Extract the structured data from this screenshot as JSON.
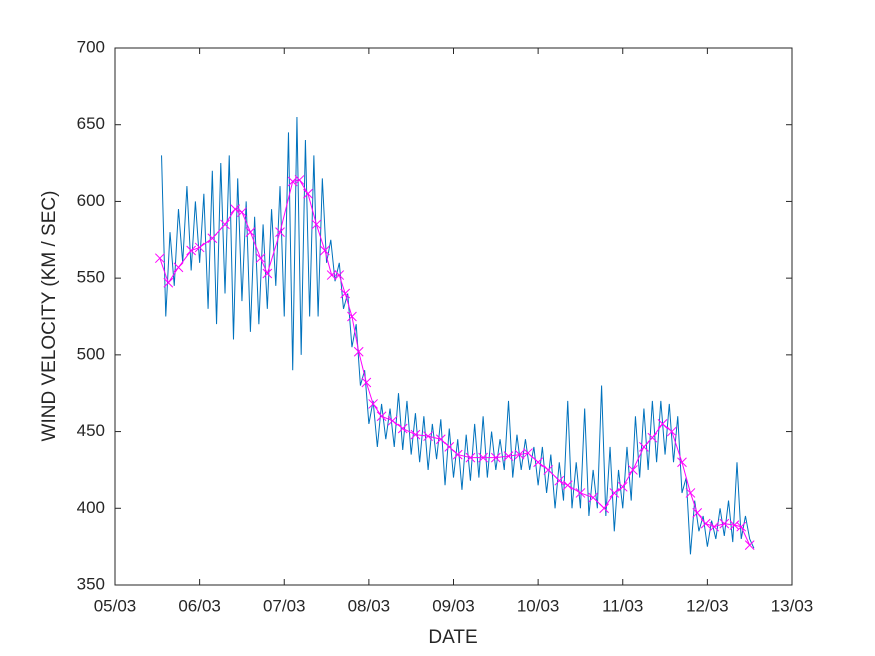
{
  "chart_data": {
    "type": "line",
    "xlabel": "DATE",
    "ylabel": "WIND  VELOCITY (KM / SEC)",
    "xlim": [
      5,
      13
    ],
    "xticks": [
      {
        "value": 5,
        "label": "05/03"
      },
      {
        "value": 6,
        "label": "06/03"
      },
      {
        "value": 7,
        "label": "07/03"
      },
      {
        "value": 8,
        "label": "08/03"
      },
      {
        "value": 9,
        "label": "09/03"
      },
      {
        "value": 10,
        "label": "10/03"
      },
      {
        "value": 11,
        "label": "11/03"
      },
      {
        "value": 12,
        "label": "12/03"
      },
      {
        "value": 13,
        "label": "13/03"
      }
    ],
    "ylim": [
      350,
      700
    ],
    "yticks": [
      350,
      400,
      450,
      500,
      550,
      600,
      650,
      700
    ],
    "series": [
      {
        "color": "#0072bd",
        "marker": "none",
        "x": [
          5.55,
          5.6,
          5.65,
          5.7,
          5.75,
          5.8,
          5.85,
          5.9,
          5.95,
          6,
          6.05,
          6.1,
          6.15,
          6.2,
          6.25,
          6.3,
          6.35,
          6.4,
          6.45,
          6.5,
          6.55,
          6.6,
          6.65,
          6.7,
          6.75,
          6.8,
          6.85,
          6.9,
          6.95,
          7,
          7.05,
          7.1,
          7.15,
          7.2,
          7.25,
          7.3,
          7.35,
          7.4,
          7.45,
          7.5,
          7.55,
          7.6,
          7.65,
          7.7,
          7.75,
          7.8,
          7.85,
          7.9,
          7.95,
          8,
          8.05,
          8.1,
          8.15,
          8.2,
          8.25,
          8.3,
          8.35,
          8.4,
          8.45,
          8.5,
          8.55,
          8.6,
          8.65,
          8.7,
          8.75,
          8.8,
          8.85,
          8.9,
          8.95,
          9,
          9.05,
          9.1,
          9.15,
          9.2,
          9.25,
          9.3,
          9.35,
          9.4,
          9.45,
          9.5,
          9.55,
          9.6,
          9.65,
          9.7,
          9.75,
          9.8,
          9.85,
          9.9,
          9.95,
          10,
          10.05,
          10.1,
          10.15,
          10.2,
          10.25,
          10.3,
          10.35,
          10.4,
          10.45,
          10.5,
          10.55,
          10.6,
          10.65,
          10.7,
          10.75,
          10.8,
          10.85,
          10.9,
          10.95,
          11,
          11.05,
          11.1,
          11.15,
          11.2,
          11.25,
          11.3,
          11.35,
          11.4,
          11.45,
          11.5,
          11.55,
          11.6,
          11.65,
          11.7,
          11.75,
          11.8,
          11.85,
          11.9,
          11.95,
          12,
          12.05,
          12.1,
          12.15,
          12.2,
          12.25,
          12.3,
          12.35,
          12.4,
          12.45,
          12.5,
          12.55
        ],
        "values": [
          630,
          525,
          580,
          545,
          595,
          560,
          610,
          555,
          600,
          560,
          605,
          530,
          620,
          520,
          625,
          540,
          630,
          510,
          615,
          535,
          600,
          515,
          590,
          520,
          585,
          530,
          595,
          545,
          610,
          525,
          645,
          490,
          655,
          500,
          640,
          525,
          630,
          525,
          615,
          560,
          575,
          548,
          560,
          530,
          540,
          505,
          520,
          480,
          490,
          455,
          470,
          440,
          468,
          445,
          465,
          440,
          475,
          438,
          470,
          435,
          462,
          430,
          460,
          425,
          455,
          432,
          458,
          415,
          452,
          420,
          445,
          412,
          448,
          418,
          455,
          420,
          460,
          420,
          450,
          425,
          445,
          425,
          470,
          420,
          448,
          425,
          445,
          425,
          440,
          415,
          440,
          410,
          435,
          400,
          430,
          405,
          470,
          400,
          430,
          400,
          465,
          395,
          425,
          400,
          480,
          395,
          440,
          385,
          425,
          400,
          440,
          405,
          460,
          420,
          465,
          425,
          470,
          430,
          470,
          435,
          468,
          430,
          460,
          410,
          420,
          370,
          405,
          385,
          395,
          375,
          392,
          380,
          400,
          382,
          405,
          378,
          430,
          380,
          395,
          380,
          374
        ]
      },
      {
        "color": "#ff00ff",
        "marker": "x",
        "x": [
          5.53,
          5.63,
          5.75,
          5.9,
          6,
          6.15,
          6.3,
          6.42,
          6.5,
          6.6,
          6.72,
          6.8,
          6.95,
          7.1,
          7.18,
          7.28,
          7.38,
          7.48,
          7.56,
          7.65,
          7.72,
          7.8,
          7.88,
          7.97,
          8.05,
          8.15,
          8.28,
          8.4,
          8.55,
          8.7,
          8.85,
          8.95,
          9.05,
          9.2,
          9.35,
          9.5,
          9.65,
          9.78,
          9.88,
          10,
          10.12,
          10.25,
          10.35,
          10.5,
          10.65,
          10.78,
          10.9,
          11,
          11.12,
          11.25,
          11.35,
          11.47,
          11.58,
          11.7,
          11.8,
          11.88,
          11.98,
          12.08,
          12.2,
          12.32,
          12.4,
          12.5
        ],
        "values": [
          563,
          547,
          557,
          568,
          570,
          576,
          585,
          595,
          593,
          580,
          563,
          553,
          580,
          613,
          614,
          605,
          585,
          568,
          552,
          552,
          540,
          525,
          502,
          482,
          468,
          460,
          457,
          452,
          448,
          447,
          445,
          440,
          435,
          433,
          433,
          433,
          434,
          435,
          436,
          430,
          425,
          418,
          415,
          410,
          407,
          400,
          410,
          414,
          425,
          440,
          446,
          455,
          450,
          430,
          410,
          397,
          390,
          388,
          390,
          389,
          388,
          376
        ]
      }
    ]
  }
}
